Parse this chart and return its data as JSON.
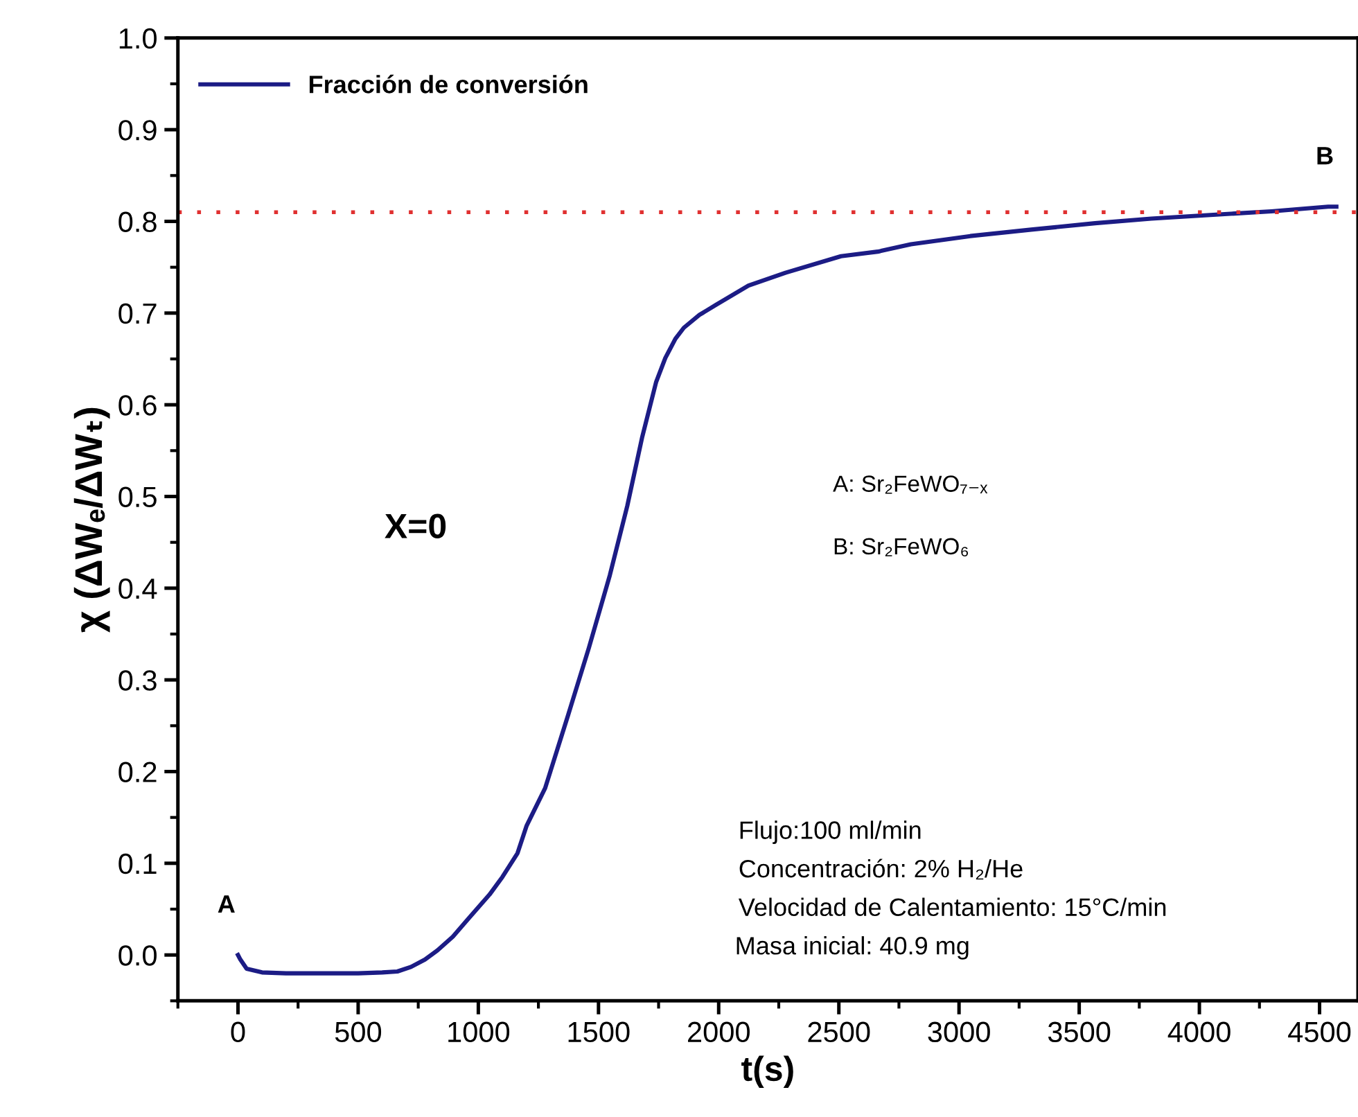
{
  "chart_data": {
    "type": "line",
    "xlabel": "t(s)",
    "ylabel": "χ (ΔWₑ/ΔWₜ)",
    "x": [
      0,
      10,
      36,
      100,
      200,
      300,
      400,
      500,
      600,
      663,
      720,
      778,
      830,
      894,
      960,
      1047,
      1100,
      1163,
      1201,
      1278,
      1374,
      1460,
      1547,
      1620,
      1682,
      1740,
      1778,
      1820,
      1855,
      1920,
      1989,
      2124,
      2278,
      2509,
      2662,
      2800,
      3047,
      3300,
      3566,
      3800,
      4046,
      4300,
      4536,
      4570
    ],
    "series": [
      {
        "name": "Fracción de conversión",
        "color": "#1c1c85",
        "values": [
          0.0,
          -0.005,
          -0.015,
          -0.019,
          -0.02,
          -0.02,
          -0.02,
          -0.02,
          -0.019,
          -0.018,
          -0.013,
          -0.005,
          0.005,
          0.02,
          0.04,
          0.066,
          0.085,
          0.111,
          0.141,
          0.182,
          0.262,
          0.335,
          0.414,
          0.49,
          0.565,
          0.625,
          0.651,
          0.672,
          0.684,
          0.698,
          0.709,
          0.73,
          0.744,
          0.762,
          0.767,
          0.775,
          0.784,
          0.791,
          0.798,
          0.803,
          0.807,
          0.811,
          0.816,
          0.816
        ]
      }
    ],
    "xlim": [
      -250,
      4660
    ],
    "ylim": [
      -0.05,
      1.0
    ],
    "xticks": [
      0,
      500,
      1000,
      1500,
      2000,
      2500,
      3000,
      3500,
      4000,
      4500
    ],
    "yticks": [
      {
        "value": 0.0,
        "label": "0.0"
      },
      0.1,
      0.2,
      0.3,
      0.4,
      0.5,
      0.6,
      0.7,
      0.8,
      0.9,
      {
        "value": 1.0,
        "label": "1.0"
      }
    ],
    "ref_lines": [
      {
        "axis": "y",
        "value": 0.81,
        "color": "#e03030",
        "line_style": "dotted"
      }
    ],
    "annotations": [
      {
        "text": "A",
        "x": 0,
        "y": 0.0
      },
      {
        "text": "B",
        "x": 4570,
        "y": 0.816
      },
      "X=0",
      "A: Sr₂FeWO₇₋ₓ",
      "B: Sr₂FeWO₆",
      "Flujo:100 ml/min",
      "Concentración: 2% H₂/He",
      "Velocidad de Calentamiento: 15°C/min",
      "Masa inicial: 40.9 mg"
    ],
    "legend": "top left",
    "grid": false,
    "marker": "none",
    "line_style": "solid"
  }
}
